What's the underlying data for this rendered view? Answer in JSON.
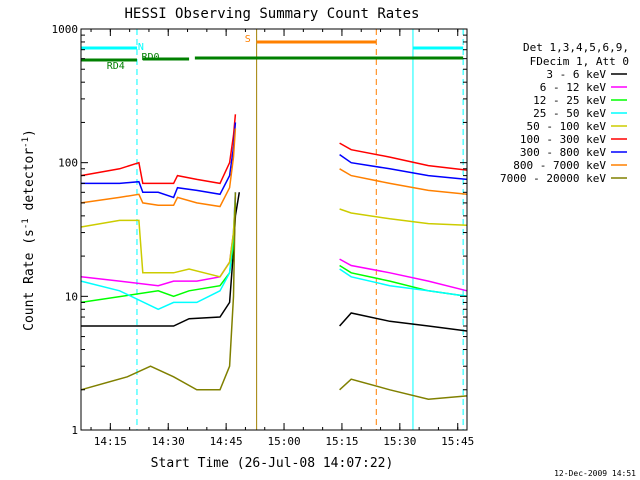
{
  "chart_data": {
    "type": "line",
    "title": "HESSI Observing Summary Count Rates",
    "xlabel": "Start Time (26-Jul-08 14:07:22)",
    "ylabel": "Count Rate (s",
    "ylabel_sup1": "-1",
    "ylabel_mid": " detector",
    "ylabel_sup2": "-1",
    "ylabel_end": ")",
    "x_axis": {
      "start_minute": 0,
      "end_minute": 100,
      "origin": "14:07:22"
    },
    "xticks": [
      {
        "label": "14:15",
        "minute": 7.6
      },
      {
        "label": "14:30",
        "minute": 22.6
      },
      {
        "label": "14:45",
        "minute": 37.6
      },
      {
        "label": "15:00",
        "minute": 52.6
      },
      {
        "label": "15:15",
        "minute": 67.6
      },
      {
        "label": "15:30",
        "minute": 82.6
      },
      {
        "label": "15:45",
        "minute": 97.6
      }
    ],
    "y_scale": "log",
    "ylim": [
      1,
      1000
    ],
    "yticks": [
      {
        "label": "1",
        "value": 1
      },
      {
        "label": "10",
        "value": 10
      },
      {
        "label": "100",
        "value": 100
      },
      {
        "label": "1000",
        "value": 1000
      }
    ],
    "legend_header": [
      "Det 1,3,4,5,6,9,",
      "FDecim 1, Att 0"
    ],
    "legend_position": "right",
    "series": [
      {
        "name": "3 - 6 keV",
        "color": "#000000",
        "points": [
          [
            0,
            6
          ],
          [
            20,
            6
          ],
          [
            24,
            6
          ],
          [
            28,
            6.8
          ],
          [
            36,
            7
          ],
          [
            38.5,
            9
          ],
          [
            39.5,
            22
          ],
          [
            40,
            40
          ],
          [
            41,
            60
          ]
        ],
        "points2": [
          [
            67,
            6
          ],
          [
            70,
            7.5
          ],
          [
            80,
            6.5
          ],
          [
            90,
            6
          ],
          [
            100,
            5.5
          ]
        ]
      },
      {
        "name": "6 - 12 keV",
        "color": "#ff00ff",
        "points": [
          [
            0,
            14
          ],
          [
            10,
            13
          ],
          [
            20,
            12
          ],
          [
            24,
            13
          ],
          [
            30,
            13
          ],
          [
            36,
            14
          ],
          [
            38.5,
            18
          ],
          [
            39.5,
            30
          ],
          [
            40,
            60
          ]
        ],
        "points2": [
          [
            67,
            19
          ],
          [
            70,
            17
          ],
          [
            80,
            15
          ],
          [
            90,
            13
          ],
          [
            100,
            11
          ]
        ]
      },
      {
        "name": "12 - 25 keV",
        "color": "#00ff00",
        "points": [
          [
            0,
            9
          ],
          [
            20,
            11
          ],
          [
            24,
            10
          ],
          [
            28,
            11
          ],
          [
            36,
            12
          ],
          [
            38.5,
            15
          ],
          [
            39.5,
            25
          ],
          [
            40,
            50
          ]
        ],
        "points2": [
          [
            67,
            17
          ],
          [
            70,
            15
          ],
          [
            80,
            13
          ],
          [
            90,
            11
          ],
          [
            100,
            10
          ]
        ]
      },
      {
        "name": "25 - 50 keV",
        "color": "#00ffff",
        "points": [
          [
            0,
            13
          ],
          [
            10,
            11
          ],
          [
            20,
            8
          ],
          [
            24,
            9
          ],
          [
            30,
            9
          ],
          [
            36,
            11
          ],
          [
            38.5,
            15
          ],
          [
            39.5,
            30
          ],
          [
            40,
            60
          ]
        ],
        "points2": [
          [
            67,
            16
          ],
          [
            70,
            14
          ],
          [
            80,
            12
          ],
          [
            90,
            11
          ],
          [
            100,
            10
          ]
        ]
      },
      {
        "name": "50 - 100 keV",
        "color": "#cccc00",
        "points": [
          [
            0,
            33
          ],
          [
            10,
            37
          ],
          [
            15,
            37
          ],
          [
            16,
            15
          ],
          [
            20,
            15
          ],
          [
            24,
            15
          ],
          [
            28,
            16
          ],
          [
            36,
            14
          ],
          [
            38.5,
            18
          ],
          [
            39.5,
            30
          ],
          [
            40,
            55
          ]
        ],
        "points2": [
          [
            67,
            45
          ],
          [
            70,
            42
          ],
          [
            80,
            38
          ],
          [
            90,
            35
          ],
          [
            100,
            34
          ]
        ]
      },
      {
        "name": "100 - 300 keV",
        "color": "#ff0000",
        "points": [
          [
            0,
            80
          ],
          [
            10,
            90
          ],
          [
            15,
            100
          ],
          [
            16,
            70
          ],
          [
            20,
            70
          ],
          [
            24,
            70
          ],
          [
            25,
            80
          ],
          [
            30,
            75
          ],
          [
            36,
            70
          ],
          [
            38.5,
            100
          ],
          [
            39.5,
            160
          ],
          [
            40,
            230
          ]
        ],
        "points2": [
          [
            67,
            140
          ],
          [
            70,
            125
          ],
          [
            80,
            110
          ],
          [
            90,
            95
          ],
          [
            100,
            88
          ]
        ]
      },
      {
        "name": "300 - 800 keV",
        "color": "#0000ff",
        "points": [
          [
            0,
            70
          ],
          [
            10,
            70
          ],
          [
            15,
            72
          ],
          [
            16,
            60
          ],
          [
            20,
            60
          ],
          [
            24,
            55
          ],
          [
            25,
            65
          ],
          [
            30,
            62
          ],
          [
            36,
            58
          ],
          [
            38.5,
            80
          ],
          [
            39.5,
            130
          ],
          [
            40,
            200
          ]
        ],
        "points2": [
          [
            67,
            115
          ],
          [
            70,
            100
          ],
          [
            80,
            90
          ],
          [
            90,
            80
          ],
          [
            100,
            75
          ]
        ]
      },
      {
        "name": "800 - 7000 keV",
        "color": "#ff8000",
        "points": [
          [
            0,
            50
          ],
          [
            10,
            55
          ],
          [
            15,
            58
          ],
          [
            16,
            50
          ],
          [
            20,
            48
          ],
          [
            24,
            48
          ],
          [
            25,
            55
          ],
          [
            30,
            50
          ],
          [
            36,
            47
          ],
          [
            38.5,
            65
          ],
          [
            39.5,
            110
          ],
          [
            40,
            180
          ]
        ],
        "points2": [
          [
            67,
            90
          ],
          [
            70,
            80
          ],
          [
            80,
            70
          ],
          [
            90,
            62
          ],
          [
            100,
            58
          ]
        ]
      },
      {
        "name": "7000 - 20000 keV",
        "color": "#808000",
        "points": [
          [
            0,
            2
          ],
          [
            12,
            2.5
          ],
          [
            18,
            3
          ],
          [
            24,
            2.5
          ],
          [
            30,
            2
          ],
          [
            36,
            2
          ],
          [
            38.5,
            3
          ],
          [
            39.5,
            10
          ],
          [
            40,
            60
          ]
        ],
        "points2": [
          [
            67,
            2
          ],
          [
            70,
            2.4
          ],
          [
            80,
            2
          ],
          [
            90,
            1.7
          ],
          [
            100,
            1.8
          ]
        ]
      }
    ],
    "annotations": [
      {
        "text": "N",
        "color": "#00ffff"
      },
      {
        "text": "RD0",
        "color": "#008000"
      },
      {
        "text": "RD4",
        "color": "#008000"
      },
      {
        "text": "S",
        "color": "#ff8000"
      }
    ]
  },
  "footer": {
    "date": "12-Dec-2009 14:51"
  }
}
